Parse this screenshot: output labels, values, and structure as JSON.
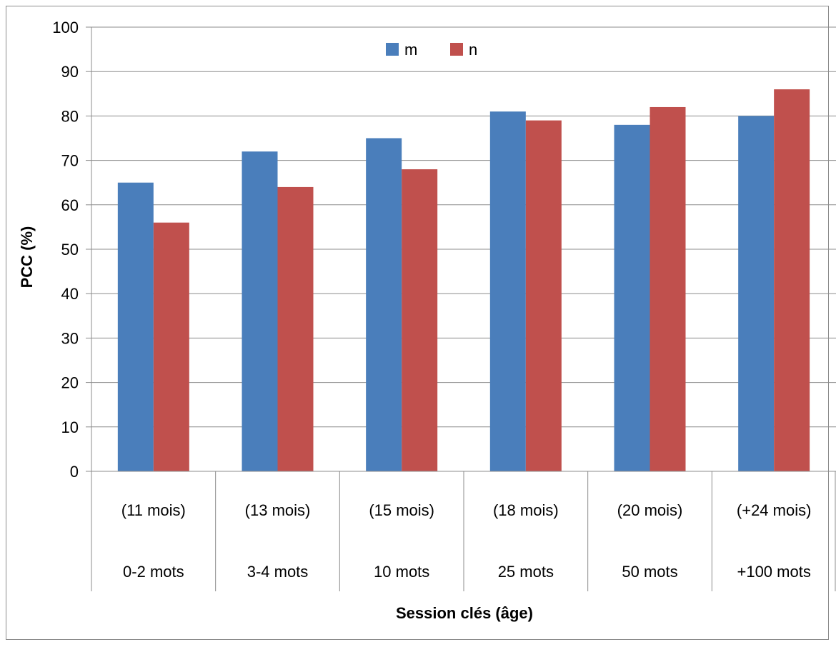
{
  "chart_data": {
    "type": "bar",
    "categories": [
      [
        "(11 mois)",
        "0-2  mots"
      ],
      [
        "(13 mois)",
        "3-4 mots"
      ],
      [
        "(15 mois)",
        "10 mots"
      ],
      [
        "(18 mois)",
        "25 mots"
      ],
      [
        "(20 mois)",
        "50 mots"
      ],
      [
        "(+24 mois)",
        "+100 mots"
      ]
    ],
    "series": [
      {
        "name": "m",
        "color": "#4A7EBB",
        "values": [
          65,
          72,
          75,
          81,
          78,
          80
        ]
      },
      {
        "name": "n",
        "color": "#C0504D",
        "values": [
          56,
          64,
          68,
          79,
          82,
          86
        ]
      }
    ],
    "ylim": [
      0,
      100
    ],
    "yticks": [
      0,
      10,
      20,
      30,
      40,
      50,
      60,
      70,
      80,
      90,
      100
    ],
    "ylabel": "PCC (%)",
    "xlabel": "Session clés (âge)",
    "legend_position": "top-center",
    "grid": "horizontal"
  }
}
